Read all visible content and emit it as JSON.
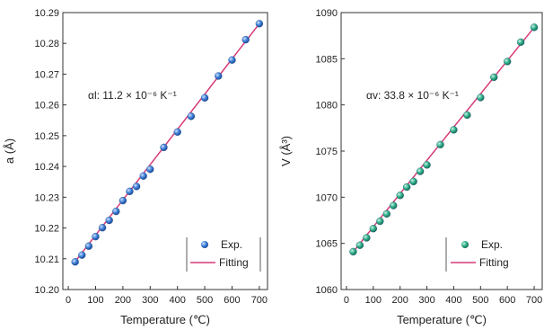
{
  "chart_data": [
    {
      "type": "scatter",
      "xlabel": "Temperature (℃)",
      "ylabel": "a (Å)",
      "xlim": [
        -20,
        730
      ],
      "ylim": [
        10.2,
        10.29
      ],
      "x_ticks": [
        "0",
        "100",
        "200",
        "300",
        "400",
        "500",
        "600",
        "700"
      ],
      "y_ticks": [
        "10.20",
        "10.21",
        "10.22",
        "10.23",
        "10.24",
        "10.25",
        "10.26",
        "10.27",
        "10.28",
        "10.29"
      ],
      "annotation": "αl: 11.2 × 10⁻⁶ K⁻¹",
      "legend_placement": "bottom-right",
      "series": [
        {
          "name": "Exp.",
          "kind": "scatter",
          "color": "#3f7fd6",
          "x": [
            25,
            50,
            75,
            100,
            125,
            150,
            175,
            200,
            225,
            250,
            275,
            300,
            350,
            400,
            450,
            500,
            550,
            600,
            650,
            700
          ],
          "y": [
            10.209,
            10.2112,
            10.2141,
            10.2172,
            10.2201,
            10.2225,
            10.2254,
            10.2289,
            10.2319,
            10.2335,
            10.2369,
            10.2391,
            10.2462,
            10.2512,
            10.2563,
            10.2623,
            10.2694,
            10.2746,
            10.2812,
            10.2864
          ]
        },
        {
          "name": "Fitting",
          "kind": "line",
          "color": "#d63a78",
          "x": [
            20,
            700
          ],
          "y": [
            10.2085,
            10.2864
          ]
        }
      ]
    },
    {
      "type": "scatter",
      "xlabel": "Temperature (℃)",
      "ylabel": "V (Å³)",
      "xlim": [
        -20,
        730
      ],
      "ylim": [
        1060,
        1090
      ],
      "x_ticks": [
        "0",
        "100",
        "200",
        "300",
        "400",
        "500",
        "600",
        "700"
      ],
      "y_ticks": [
        "1060",
        "1065",
        "1070",
        "1075",
        "1080",
        "1085",
        "1090"
      ],
      "annotation": "αv: 33.8 × 10⁻⁶ K⁻¹",
      "legend_placement": "bottom-right",
      "series": [
        {
          "name": "Exp.",
          "kind": "scatter",
          "color": "#2fb08a",
          "x": [
            25,
            50,
            75,
            100,
            125,
            150,
            175,
            200,
            225,
            250,
            275,
            300,
            350,
            400,
            450,
            500,
            550,
            600,
            650,
            700
          ],
          "y": [
            1064.1,
            1064.8,
            1065.6,
            1066.6,
            1067.4,
            1068.2,
            1069.1,
            1070.2,
            1071.1,
            1071.7,
            1072.8,
            1073.5,
            1075.7,
            1077.3,
            1078.9,
            1080.8,
            1083.0,
            1084.7,
            1086.8,
            1088.4
          ]
        },
        {
          "name": "Fitting",
          "kind": "line",
          "color": "#d63a78",
          "x": [
            20,
            700
          ],
          "y": [
            1063.9,
            1088.4
          ]
        }
      ]
    }
  ]
}
